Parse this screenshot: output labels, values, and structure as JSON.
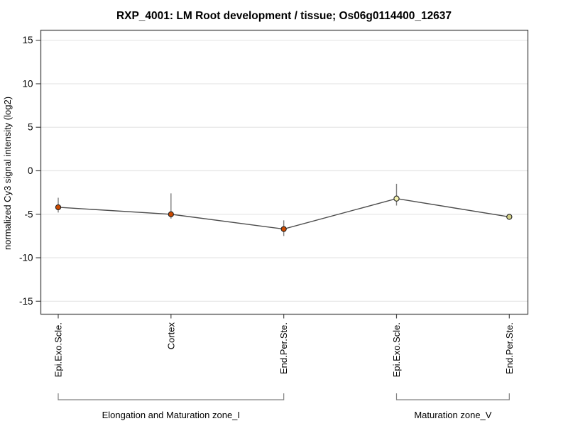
{
  "title": "RXP_4001: LM Root development / tissue; Os06g0114400_12637",
  "chart_data": {
    "type": "line",
    "title": "RXP_4001: LM Root development / tissue; Os06g0114400_12637",
    "xlabel": "",
    "ylabel": "normalized Cy3 signal intensity (log2)",
    "ylim": [
      -16.5,
      16.3
    ],
    "yticks": [
      15,
      10,
      5,
      0,
      -5,
      -10,
      -15
    ],
    "grid": true,
    "legend": "none",
    "categories": [
      "Epi.Exo.Scle.",
      "Cortex",
      "End.Per.Ste.",
      "Epi.Exo.Scle.",
      "End.Per.Ste."
    ],
    "points": [
      {
        "label": "Epi.Exo.Scle.",
        "group": "Elongation and Maturation zone_I",
        "value": -4.2,
        "err_lo": -4.8,
        "err_hi": -3.1,
        "fill": "#cc4a00"
      },
      {
        "label": "Cortex",
        "group": "Elongation and Maturation zone_I",
        "value": -5.0,
        "err_lo": -5.5,
        "err_hi": -2.6,
        "fill": "#cc4a00"
      },
      {
        "label": "End.Per.Ste.",
        "group": "Elongation and Maturation zone_I",
        "value": -6.7,
        "err_lo": -7.5,
        "err_hi": -5.7,
        "fill": "#cc4a00"
      },
      {
        "label": "Epi.Exo.Scle.",
        "group": "Maturation zone_V",
        "value": -3.2,
        "err_lo": -4.0,
        "err_hi": -1.5,
        "fill": "#f4f2ae"
      },
      {
        "label": "End.Per.Ste.",
        "group": "Maturation zone_V",
        "value": -5.3,
        "err_lo": -5.3,
        "err_hi": -5.3,
        "fill": "#d2d088"
      }
    ],
    "groups": [
      {
        "label": "Elongation and Maturation zone_I",
        "from": 0,
        "to": 2
      },
      {
        "label": "Maturation zone_V",
        "from": 3,
        "to": 4
      }
    ],
    "colors": {
      "series_line": "#4d4d4d",
      "error_bar": "#808080",
      "grid_line": "#e6e6e6",
      "frame": "#4a4a4a",
      "bracket": "#808080",
      "marker_stroke": "#222222"
    }
  }
}
